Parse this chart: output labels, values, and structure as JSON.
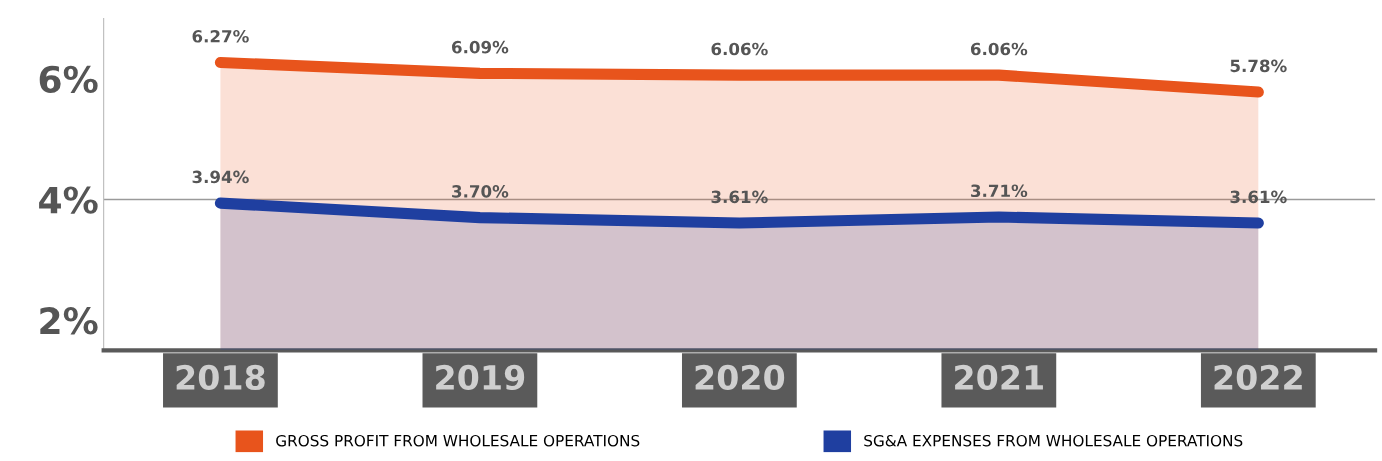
{
  "chart_data": {
    "type": "area",
    "categories": [
      "2018",
      "2019",
      "2020",
      "2021",
      "2022"
    ],
    "series": [
      {
        "name": "GROSS PROFIT FROM WHOLESALE OPERATIONS",
        "color": "#e8541c",
        "values": [
          6.27,
          6.09,
          6.06,
          6.06,
          5.78
        ],
        "value_labels": [
          "6.27%",
          "6.09%",
          "6.06%",
          "6.06%",
          "5.78%"
        ]
      },
      {
        "name": "SG&A EXPENSES FROM WHOLESALE OPERATIONS",
        "color": "#1f3fa0",
        "values": [
          3.94,
          3.7,
          3.61,
          3.71,
          3.61
        ],
        "value_labels": [
          "3.94%",
          "3.70%",
          "3.61%",
          "3.71%",
          "3.61%"
        ]
      }
    ],
    "ylim": [
      1.5,
      7
    ],
    "yticks": [
      {
        "value": 2,
        "label": "2%"
      },
      {
        "value": 4,
        "label": "4%"
      },
      {
        "value": 6,
        "label": "6%"
      }
    ],
    "ref_lines": [
      {
        "axis": "y",
        "value": 4,
        "color": "#9a9a9a"
      }
    ],
    "legend": "bottom",
    "grid": false
  }
}
